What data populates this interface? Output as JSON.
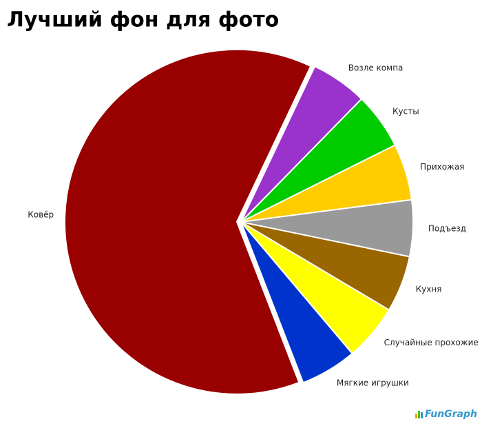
{
  "chart_data": {
    "type": "pie",
    "title": "Лучший фон для фото",
    "categories": [
      "Возле компа",
      "Кусты",
      "Прихожая",
      "Подъезд",
      "Кухня",
      "Случайные прохожие",
      "Мягкие игрушки",
      "Ковёр"
    ],
    "values": [
      5.3,
      5.3,
      5.3,
      5.3,
      5.3,
      5.3,
      5.3,
      63
    ],
    "colors": [
      "#9933cc",
      "#00cc00",
      "#ffcc00",
      "#999999",
      "#996600",
      "#ffff00",
      "#0033cc",
      "#990000"
    ],
    "watermark": "FunGraph"
  }
}
